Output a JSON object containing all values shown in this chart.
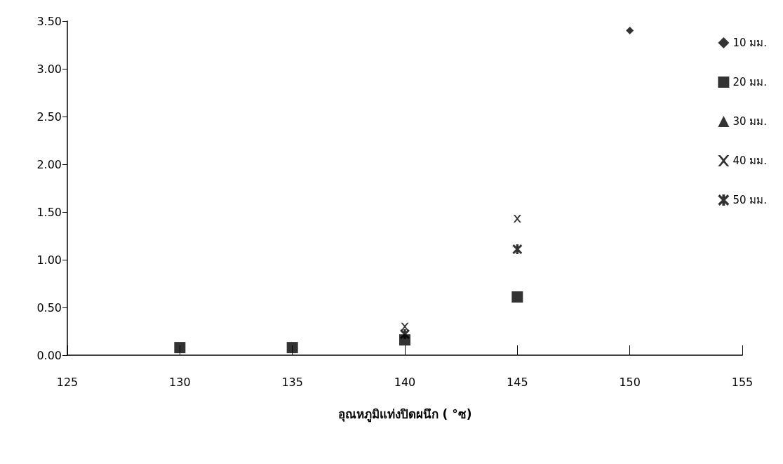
{
  "chart_data": {
    "type": "scatter",
    "xlabel": "อุณหภูมิแท่งปิดผนึก ( °ซ)",
    "x": [
      130,
      135,
      140,
      145,
      150
    ],
    "series": [
      {
        "name": "10 มม.",
        "color": "#000000",
        "marker": "diamond",
        "values": [
          null,
          null,
          null,
          null,
          3.4
        ]
      },
      {
        "name": "20 มม.",
        "color": "#000000",
        "marker": "square",
        "values": [
          0.08,
          0.08,
          0.16,
          0.61,
          null
        ]
      },
      {
        "name": "30 มม.",
        "color": "#000000",
        "marker": "triangle",
        "values": [
          null,
          null,
          null,
          null,
          null
        ]
      },
      {
        "name": "40 มม.",
        "color": "#000000",
        "marker": "cross",
        "values": [
          null,
          null,
          0.3,
          1.43,
          null
        ]
      },
      {
        "name": "50 มม.",
        "color": "#000000",
        "marker": "star",
        "values": [
          null,
          null,
          0.22,
          1.11,
          null
        ]
      }
    ],
    "xlim": [
      125,
      155
    ],
    "xticks": [
      125,
      130,
      135,
      140,
      145,
      150,
      155
    ],
    "ylim": [
      0,
      3.5
    ],
    "yticks": [
      {
        "value": 0,
        "label": "0.00"
      },
      {
        "value": 0.5,
        "label": "0.50"
      },
      {
        "value": 1,
        "label": "1.00"
      },
      {
        "value": 1.5,
        "label": "1.50"
      },
      {
        "value": 2,
        "label": "2.00"
      },
      {
        "value": 2.5,
        "label": "2.50"
      },
      {
        "value": 3,
        "label": "3.00"
      },
      {
        "value": 3.5,
        "label": "3.50"
      }
    ],
    "grid": false,
    "legend": "right"
  }
}
